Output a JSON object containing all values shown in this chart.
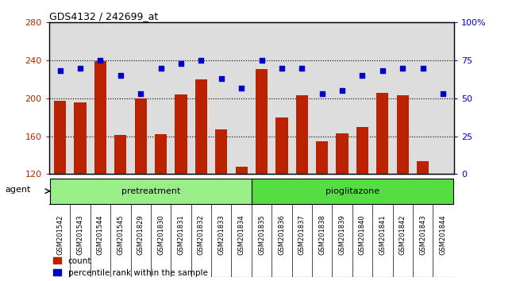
{
  "title": "GDS4132 / 242699_at",
  "samples": [
    "GSM201542",
    "GSM201543",
    "GSM201544",
    "GSM201545",
    "GSM201829",
    "GSM201830",
    "GSM201831",
    "GSM201832",
    "GSM201833",
    "GSM201834",
    "GSM201835",
    "GSM201836",
    "GSM201837",
    "GSM201838",
    "GSM201839",
    "GSM201840",
    "GSM201841",
    "GSM201842",
    "GSM201843",
    "GSM201844"
  ],
  "counts": [
    197,
    196,
    239,
    161,
    200,
    162,
    204,
    220,
    167,
    128,
    231,
    180,
    203,
    155,
    163,
    170,
    206,
    203,
    134,
    120
  ],
  "percentile_ranks": [
    68,
    70,
    75,
    65,
    53,
    70,
    73,
    75,
    63,
    57,
    75,
    70,
    70,
    53,
    55,
    65,
    68,
    70,
    70,
    53
  ],
  "pretreatment_count": 10,
  "pioglitazone_count": 10,
  "ylim_left": [
    120,
    280
  ],
  "ylim_right": [
    0,
    100
  ],
  "yticks_left": [
    120,
    160,
    200,
    240,
    280
  ],
  "yticks_right": [
    0,
    25,
    50,
    75,
    100
  ],
  "bar_color": "#bb2200",
  "dot_color": "#0000cc",
  "pretreatment_color": "#99ee88",
  "pioglitazone_color": "#55dd44",
  "xtick_bg": "#cccccc",
  "pretreatment_label": "pretreatment",
  "pioglitazone_label": "pioglitazone",
  "agent_label": "agent",
  "legend_count_label": "count",
  "legend_pct_label": "percentile rank within the sample",
  "background_color": "#dddddd"
}
